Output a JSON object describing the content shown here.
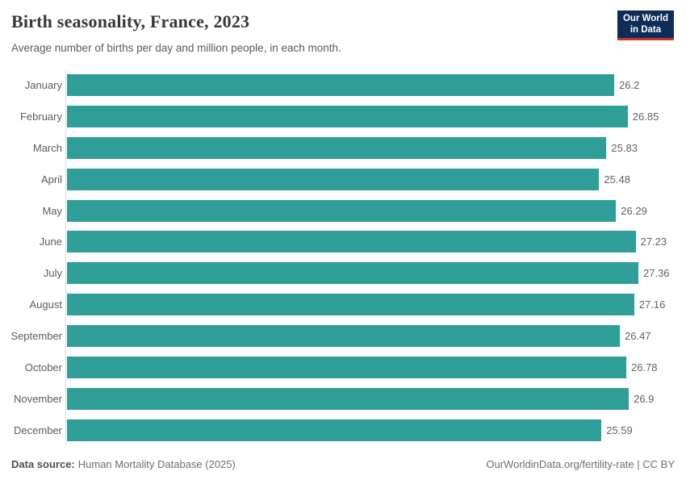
{
  "header": {
    "title": "Birth seasonality, France, 2023",
    "subtitle": "Average number of births per day and million people, in each month.",
    "logo_line1": "Our World",
    "logo_line2": "in Data"
  },
  "chart_data": {
    "type": "bar",
    "orientation": "horizontal",
    "title": "Birth seasonality, France, 2023",
    "subtitle": "Average number of births per day and million people, in each month.",
    "categories": [
      "January",
      "February",
      "March",
      "April",
      "May",
      "June",
      "July",
      "August",
      "September",
      "October",
      "November",
      "December"
    ],
    "values": [
      26.2,
      26.85,
      25.83,
      25.48,
      26.29,
      27.23,
      27.36,
      27.16,
      26.47,
      26.78,
      26.9,
      25.59
    ],
    "value_labels": [
      "26.2",
      "26.85",
      "25.83",
      "25.48",
      "26.29",
      "27.23",
      "27.36",
      "27.16",
      "26.47",
      "26.78",
      "26.9",
      "25.59"
    ],
    "xlim": [
      0,
      27.36
    ],
    "xlabel": "",
    "ylabel": "",
    "grid": false,
    "legend": false,
    "bar_color": "#2f9e98",
    "axis_line_color": "#dcdcdc",
    "category_label_color": "#5b5b5b",
    "value_label_color": "#616161"
  },
  "footer": {
    "source_label": "Data source:",
    "source_value": "Human Mortality Database (2025)",
    "credit_url": "OurWorldinData.org/fertility-rate",
    "credit_suffix": " | CC BY"
  },
  "colors": {
    "bar": "#2f9e98",
    "logo_background": "#0c2d57",
    "logo_stripe": "#d2302c",
    "title_text": "#383838",
    "subtitle_text": "#5a5a5a"
  }
}
